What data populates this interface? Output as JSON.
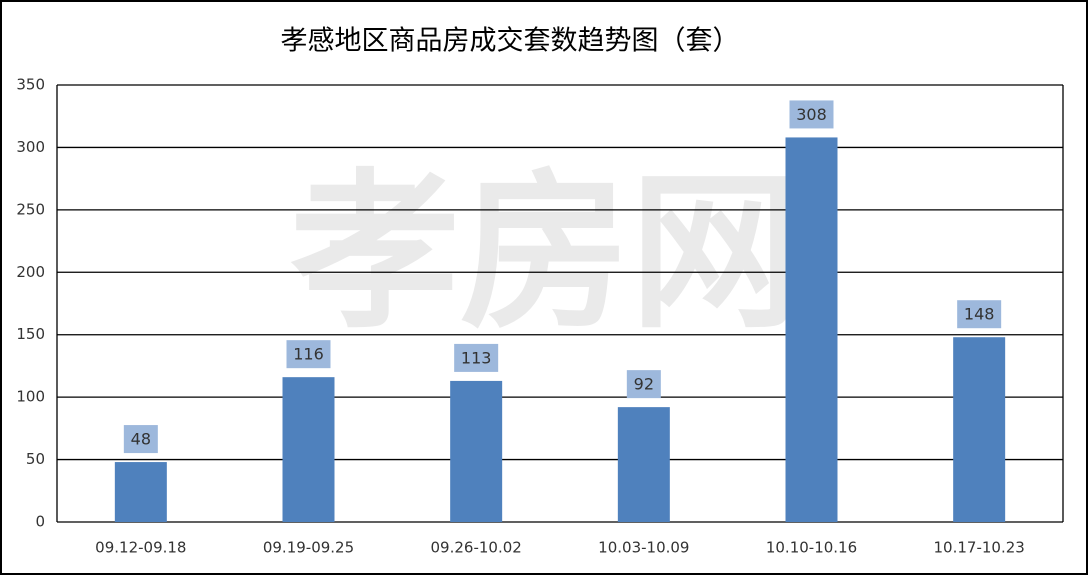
{
  "chart_data": {
    "type": "bar",
    "title": "孝感地区商品房成交套数趋势图（套）",
    "watermark": "孝房网",
    "categories": [
      "09.12-09.18",
      "09.19-09.25",
      "09.26-10.02",
      "10.03-10.09",
      "10.10-10.16",
      "10.17-10.23"
    ],
    "values": [
      48,
      116,
      113,
      92,
      308,
      148
    ],
    "color": "#4f81bd",
    "ylim": [
      0,
      350
    ],
    "yticks": [
      0,
      50,
      100,
      150,
      200,
      250,
      300,
      350
    ],
    "grid": true
  }
}
